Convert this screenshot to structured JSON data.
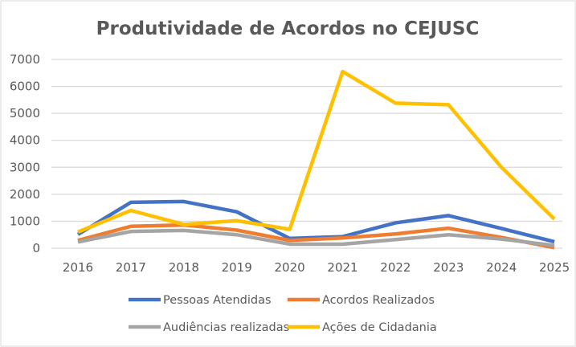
{
  "chart_data": {
    "type": "line",
    "title": "Produtividade de Acordos no CEJUSC",
    "xlabel": "",
    "ylabel": "",
    "categories": [
      "2016",
      "2017",
      "2018",
      "2019",
      "2020",
      "2021",
      "2022",
      "2023",
      "2024",
      "2025"
    ],
    "ylim": [
      0,
      7000
    ],
    "yticks": [
      "0",
      "1000",
      "2000",
      "3000",
      "4000",
      "5000",
      "6000",
      "7000"
    ],
    "grid": true,
    "legend": "bottom",
    "series": [
      {
        "name": "Pessoas Atendidas",
        "color": "#4472C4",
        "values": [
          510,
          1700,
          1730,
          1350,
          360,
          430,
          940,
          1210,
          730,
          240
        ]
      },
      {
        "name": "Acordos Realizados",
        "color": "#ED7D31",
        "values": [
          290,
          810,
          860,
          670,
          290,
          380,
          530,
          740,
          400,
          20
        ]
      },
      {
        "name": "Audiências realizadas",
        "color": "#A5A5A5",
        "values": [
          230,
          620,
          660,
          500,
          150,
          150,
          320,
          500,
          340,
          100
        ]
      },
      {
        "name": "Ações de Cidadania",
        "color": "#FFC000",
        "values": [
          600,
          1400,
          880,
          1020,
          700,
          6550,
          5380,
          5320,
          3000,
          1080
        ]
      }
    ]
  }
}
